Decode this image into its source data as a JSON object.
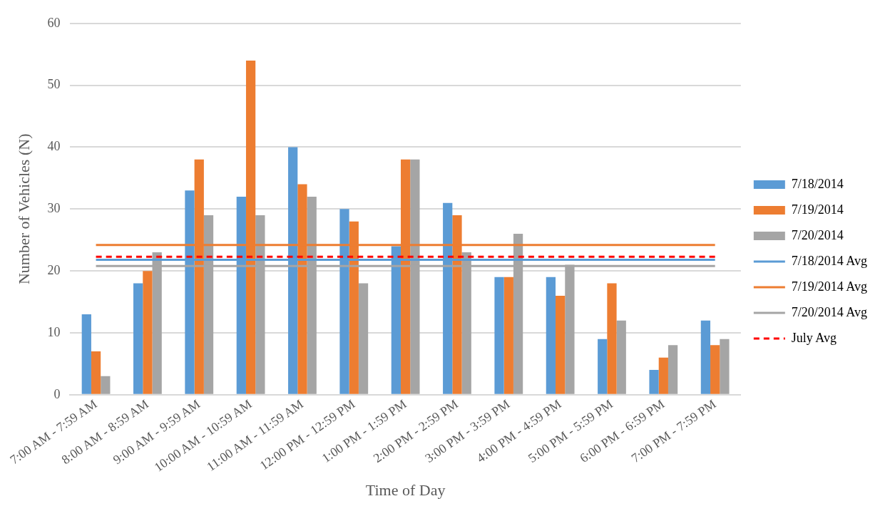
{
  "chart_data": {
    "type": "bar",
    "xlabel": "Time of Day",
    "ylabel": "Number of Vehicles (N)",
    "categories": [
      "7:00 AM - 7:59 AM",
      "8:00 AM - 8:59 AM",
      "9:00 AM - 9:59 AM",
      "10:00 AM - 10:59 AM",
      "11:00 AM - 11:59 AM",
      "12:00 PM - 12:59 PM",
      "1:00 PM - 1:59 PM",
      "2:00 PM - 2:59 PM",
      "3:00 PM - 3:59 PM",
      "4:00 PM - 4:59 PM",
      "5:00 PM - 5:59 PM",
      "6:00 PM - 6:59 PM",
      "7:00 PM - 7:59 PM"
    ],
    "series": [
      {
        "name": "7/18/2014",
        "color": "#5b9bd5",
        "values": [
          13,
          18,
          33,
          32,
          40,
          30,
          24,
          31,
          19,
          19,
          9,
          4,
          12
        ]
      },
      {
        "name": "7/19/2014",
        "color": "#ed7d31",
        "values": [
          7,
          20,
          38,
          54,
          34,
          28,
          38,
          29,
          19,
          16,
          18,
          6,
          8
        ]
      },
      {
        "name": "7/20/2014",
        "color": "#a5a5a5",
        "values": [
          3,
          23,
          29,
          29,
          32,
          18,
          38,
          23,
          26,
          21,
          12,
          8,
          9
        ]
      },
      {
        "name": "7/18/2014 Avg",
        "type": "line",
        "color": "#5b9bd5",
        "line_style": "solid",
        "values": [
          21.8,
          21.8,
          21.8,
          21.8,
          21.8,
          21.8,
          21.8,
          21.8,
          21.8,
          21.8,
          21.8,
          21.8,
          21.8
        ]
      },
      {
        "name": "7/19/2014 Avg",
        "type": "line",
        "color": "#ed7d31",
        "line_style": "solid",
        "values": [
          24.2,
          24.2,
          24.2,
          24.2,
          24.2,
          24.2,
          24.2,
          24.2,
          24.2,
          24.2,
          24.2,
          24.2,
          24.2
        ]
      },
      {
        "name": "7/20/2014 Avg",
        "type": "line",
        "color": "#a5a5a5",
        "line_style": "solid",
        "values": [
          20.8,
          20.8,
          20.8,
          20.8,
          20.8,
          20.8,
          20.8,
          20.8,
          20.8,
          20.8,
          20.8,
          20.8,
          20.8
        ]
      },
      {
        "name": "July Avg",
        "type": "line",
        "color": "#ff0000",
        "line_style": "dashed",
        "values": [
          22.3,
          22.3,
          22.3,
          22.3,
          22.3,
          22.3,
          22.3,
          22.3,
          22.3,
          22.3,
          22.3,
          22.3,
          22.3
        ]
      }
    ],
    "ylim": [
      0,
      60
    ],
    "yticks": [
      0,
      10,
      20,
      30,
      40,
      50,
      60
    ],
    "grid": "y",
    "legend": "right",
    "marker": "none"
  }
}
